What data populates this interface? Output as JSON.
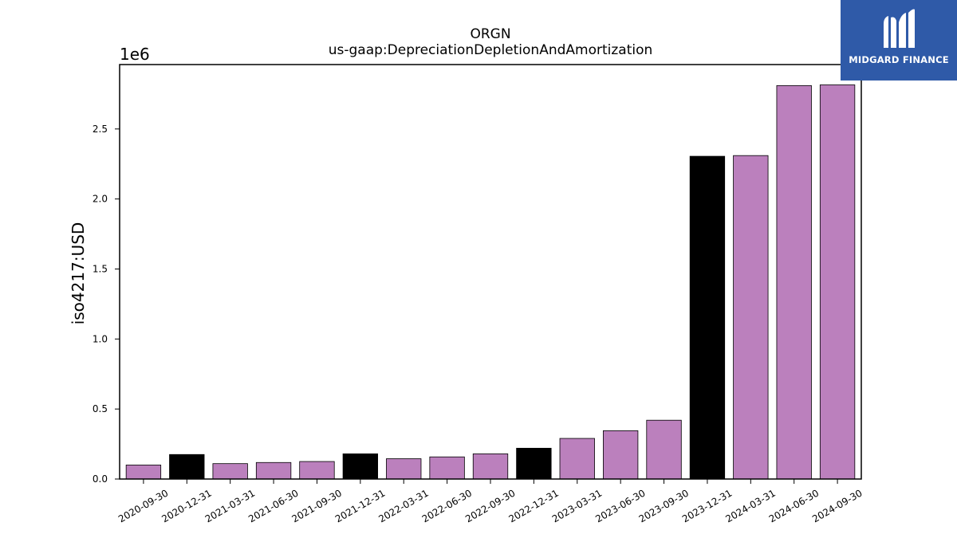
{
  "logo": {
    "text": "MIDGARD FINANCE",
    "background": "#2f5aa8"
  },
  "chart_data": {
    "type": "bar",
    "title": "ORGN",
    "subtitle": "us-gaap:DepreciationDepletionAndAmortization",
    "ylabel": "iso4217:USD",
    "xlabel": "",
    "y_offset_label": "1e6",
    "ylim": [
      0,
      2960000
    ],
    "yticks": [
      0,
      500000,
      1000000,
      1500000,
      2000000,
      2500000
    ],
    "ytick_labels": [
      "0.0",
      "0.5",
      "1.0",
      "1.5",
      "2.0",
      "2.5"
    ],
    "grid": false,
    "colors": {
      "quarterly": "#bb80bd",
      "annual": "#000000",
      "edge": "#000000"
    },
    "categories": [
      "2020-09-30",
      "2020-12-31",
      "2021-03-31",
      "2021-06-30",
      "2021-09-30",
      "2021-12-31",
      "2022-03-31",
      "2022-06-30",
      "2022-09-30",
      "2022-12-31",
      "2023-03-31",
      "2023-06-30",
      "2023-09-30",
      "2023-12-31",
      "2024-03-31",
      "2024-06-30",
      "2024-09-30"
    ],
    "values": [
      100000,
      175000,
      110000,
      118000,
      125000,
      180000,
      145000,
      158000,
      180000,
      220000,
      290000,
      345000,
      420000,
      2305000,
      2310000,
      2810000,
      2815000
    ],
    "kinds": [
      "quarterly",
      "annual",
      "quarterly",
      "quarterly",
      "quarterly",
      "annual",
      "quarterly",
      "quarterly",
      "quarterly",
      "annual",
      "quarterly",
      "quarterly",
      "quarterly",
      "annual",
      "quarterly",
      "quarterly",
      "quarterly"
    ]
  }
}
